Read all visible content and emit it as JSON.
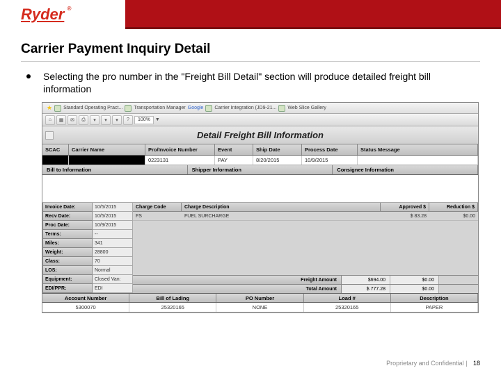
{
  "logo": "Ryder",
  "slide_title": "Carrier Payment Inquiry Detail",
  "bullet": "Selecting the pro number in the \"Freight Bill Detail\" section will produce detailed freight bill information",
  "browser_tabs": [
    "Standard Operating Pract...",
    "Transportation Manager",
    "Google",
    "Carrier Integration (JD9-21...",
    "Web Slice Gallery"
  ],
  "zoom": "100%",
  "app_title": "Detail Freight Bill Information",
  "columns": [
    "SCAC",
    "Carrier Name",
    "Pro/Invoice Number",
    "Event",
    "Ship Date",
    "Process Date",
    "Status Message"
  ],
  "row1": {
    "pro": "0223131",
    "event": "PAY",
    "ship": "8/20/2015",
    "proc": "10/9/2015"
  },
  "sections": [
    "Bill to Information",
    "Shipper Information",
    "Consignee Information"
  ],
  "left_rows": [
    {
      "label": "Invoice Date:",
      "value": "10/5/2015"
    },
    {
      "label": "Recv Date:",
      "value": "10/5/2015"
    },
    {
      "label": "Proc Date:",
      "value": "10/9/2015"
    },
    {
      "label": "Terms:",
      "value": "--"
    },
    {
      "label": "Miles:",
      "value": "341"
    },
    {
      "label": "Weight:",
      "value": "28800"
    },
    {
      "label": "Class:",
      "value": "70"
    },
    {
      "label": "LOS:",
      "value": "Normal"
    },
    {
      "label": "Equipment:",
      "value": "Closed Van:"
    },
    {
      "label": "EDI/PPR:",
      "value": "EDI"
    }
  ],
  "charge_headers": [
    "Charge Code",
    "Charge Description",
    "Approved $",
    "Reduction $"
  ],
  "charge_row": {
    "code": "FS",
    "desc": "FUEL SURCHARGE",
    "approved": "$ 83.28",
    "reduction": "$0.00"
  },
  "totals": [
    {
      "label": "Freight Amount",
      "v1": "$694.00",
      "v2": "$0.00"
    },
    {
      "label": "Total Amount",
      "v1": "$ 777.28",
      "v2": "$0.00"
    }
  ],
  "bottom_headers": [
    "Account Number",
    "Bill of Lading",
    "PO Number",
    "Load #",
    "Description"
  ],
  "bottom_data": [
    "5300070",
    "25320165",
    "NONE",
    "25320165",
    "PAPER"
  ],
  "footer_text": "Proprietary and Confidential  |",
  "page_num": "18"
}
